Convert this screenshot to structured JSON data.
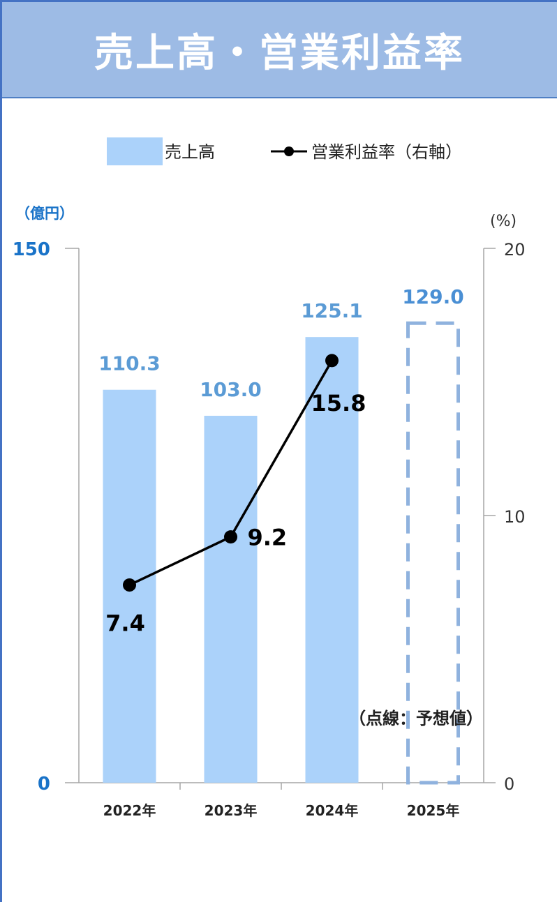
{
  "header": {
    "title": "売上高・営業利益率"
  },
  "legend": {
    "bar_label": "売上高",
    "line_label": "営業利益率（右軸）"
  },
  "axes": {
    "left_unit": "（億円）",
    "right_unit": "(%)",
    "left_ticks": [
      "150",
      "0"
    ],
    "right_ticks": [
      "20",
      "10",
      "0"
    ]
  },
  "note": "（点線：予想値）",
  "colors": {
    "bar": "#abd2fa",
    "bar_label": "#5b9bd5",
    "forecast_label": "#4a8fd4",
    "line": "#000000",
    "left_axis_label": "#1a73c8"
  },
  "chart_data": {
    "type": "bar",
    "categories": [
      "2022年",
      "2023年",
      "2024年",
      "2025年"
    ],
    "series": [
      {
        "values": [
          110.3,
          103.0,
          125.1,
          129.0
        ],
        "labels": [
          "110.3",
          "103.0",
          "125.1",
          "129.0"
        ],
        "forecast": [
          false,
          false,
          false,
          true
        ]
      },
      {
        "type": "line",
        "axis": "right",
        "values": [
          7.4,
          9.2,
          15.8,
          null
        ],
        "labels": [
          "7.4",
          "9.2",
          "15.8",
          ""
        ]
      }
    ],
    "ylim_left": [
      0,
      150
    ],
    "ylim_right": [
      0,
      20
    ],
    "grid": false,
    "legend_position": "top"
  }
}
